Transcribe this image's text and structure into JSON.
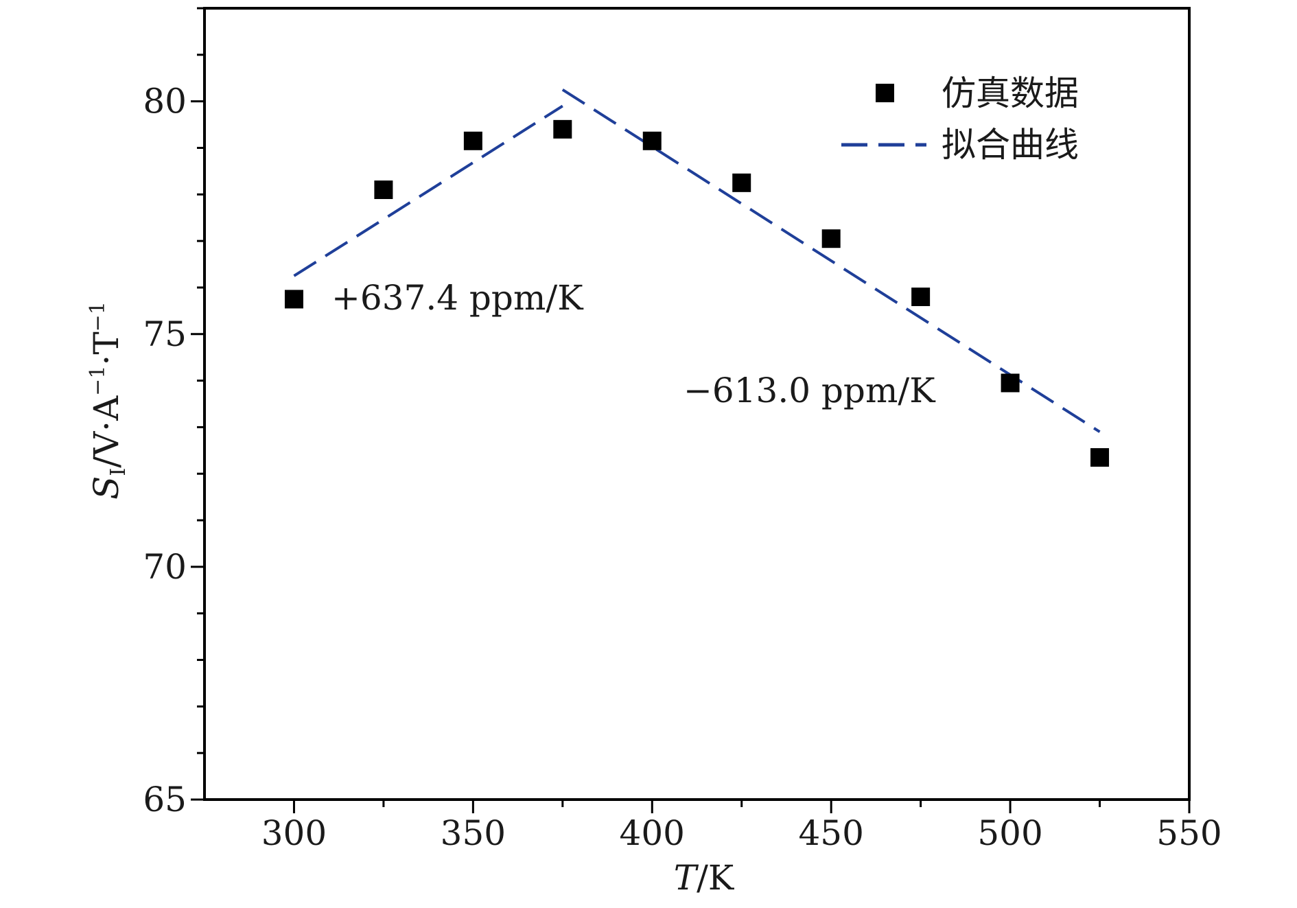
{
  "chart_data": {
    "type": "scatter",
    "xlabel": "T/K",
    "ylabel": "S_I/V·A^-1·T^-1",
    "xlim": [
      275,
      550
    ],
    "ylim": [
      65,
      82
    ],
    "xticks": [
      300,
      350,
      400,
      450,
      500,
      550
    ],
    "yticks": [
      65,
      70,
      75,
      80
    ],
    "grid": false,
    "legend_position": "top-right",
    "series": [
      {
        "name": "仿真数据",
        "type": "scatter",
        "marker": "square",
        "color": "#000000",
        "x": [
          300,
          325,
          350,
          375,
          400,
          425,
          450,
          475,
          500,
          525
        ],
        "y": [
          75.75,
          78.1,
          79.15,
          79.4,
          79.15,
          78.25,
          77.05,
          75.8,
          73.95,
          72.35
        ]
      },
      {
        "name": "拟合曲线",
        "type": "line",
        "style": "dashed",
        "color": "#1f3f99",
        "segments": [
          {
            "x": [
              300,
              375
            ],
            "y": [
              76.25,
              79.9
            ]
          },
          {
            "x": [
              375,
              525
            ],
            "y": [
              80.25,
              72.9
            ]
          }
        ]
      }
    ],
    "annotations": [
      {
        "text": "+637.4 ppm/K"
      },
      {
        "text": "−613.0 ppm/K"
      }
    ]
  }
}
